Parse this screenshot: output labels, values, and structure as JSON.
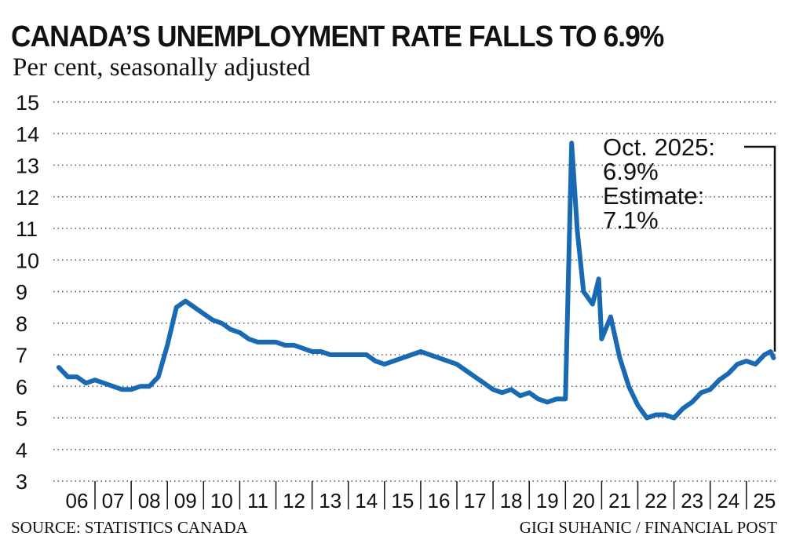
{
  "title": "CANADA’S UNEMPLOYMENT RATE FALLS TO 6.9%",
  "subtitle": "Per cent, seasonally adjusted",
  "source": "SOURCE: STATISTICS CANADA",
  "credit": "GIGI SUHANIC / FINANCIAL POST",
  "colors": {
    "line": "#1a6ab3",
    "text": "#111111",
    "grid": "#555555"
  },
  "chart_data": {
    "type": "line",
    "title": "CANADA’S UNEMPLOYMENT RATE FALLS TO 6.9%",
    "subtitle": "Per cent, seasonally adjusted",
    "xlabel": "",
    "ylabel": "",
    "ylim": [
      3,
      15
    ],
    "yticks": [
      3,
      4,
      5,
      6,
      7,
      8,
      9,
      10,
      11,
      12,
      13,
      14,
      15
    ],
    "xticks": [
      "06",
      "07",
      "08",
      "09",
      "10",
      "11",
      "12",
      "13",
      "14",
      "15",
      "16",
      "17",
      "18",
      "19",
      "20",
      "21",
      "22",
      "23",
      "24",
      "25"
    ],
    "grid": "horizontal-dotted",
    "annotation": {
      "lines": [
        "Oct. 2025:",
        "6.9%",
        "Estimate:",
        "7.1%"
      ],
      "target_x": 2025.75,
      "target_y": 6.9
    },
    "series": [
      {
        "x": [
          2006.0,
          2006.25,
          2006.5,
          2006.75,
          2007.0,
          2007.25,
          2007.5,
          2007.75,
          2008.0,
          2008.25,
          2008.5,
          2008.75,
          2009.0,
          2009.25,
          2009.5,
          2009.75,
          2010.0,
          2010.25,
          2010.5,
          2010.75,
          2011.0,
          2011.25,
          2011.5,
          2011.75,
          2012.0,
          2012.25,
          2012.5,
          2012.75,
          2013.0,
          2013.25,
          2013.5,
          2013.75,
          2014.0,
          2014.25,
          2014.5,
          2014.75,
          2015.0,
          2015.25,
          2015.5,
          2015.75,
          2016.0,
          2016.25,
          2016.5,
          2016.75,
          2017.0,
          2017.25,
          2017.5,
          2017.75,
          2018.0,
          2018.25,
          2018.5,
          2018.75,
          2019.0,
          2019.25,
          2019.5,
          2019.75,
          2020.0,
          2020.17,
          2020.33,
          2020.5,
          2020.75,
          2020.92,
          2021.0,
          2021.25,
          2021.5,
          2021.75,
          2022.0,
          2022.25,
          2022.5,
          2022.75,
          2023.0,
          2023.25,
          2023.5,
          2023.75,
          2024.0,
          2024.25,
          2024.5,
          2024.75,
          2025.0,
          2025.25,
          2025.5,
          2025.67,
          2025.75
        ],
        "values": [
          6.6,
          6.3,
          6.3,
          6.1,
          6.2,
          6.1,
          6.0,
          5.9,
          5.9,
          6.0,
          6.0,
          6.3,
          7.3,
          8.5,
          8.7,
          8.5,
          8.3,
          8.1,
          8.0,
          7.8,
          7.7,
          7.5,
          7.4,
          7.4,
          7.4,
          7.3,
          7.3,
          7.2,
          7.1,
          7.1,
          7.0,
          7.0,
          7.0,
          7.0,
          7.0,
          6.8,
          6.7,
          6.8,
          6.9,
          7.0,
          7.1,
          7.0,
          6.9,
          6.8,
          6.7,
          6.5,
          6.3,
          6.1,
          5.9,
          5.8,
          5.9,
          5.7,
          5.8,
          5.6,
          5.5,
          5.6,
          5.6,
          13.7,
          10.9,
          9.0,
          8.6,
          9.4,
          7.5,
          8.2,
          6.9,
          6.0,
          5.4,
          5.0,
          5.1,
          5.1,
          5.0,
          5.3,
          5.5,
          5.8,
          5.9,
          6.2,
          6.4,
          6.7,
          6.8,
          6.7,
          7.0,
          7.1,
          6.9
        ]
      }
    ]
  }
}
